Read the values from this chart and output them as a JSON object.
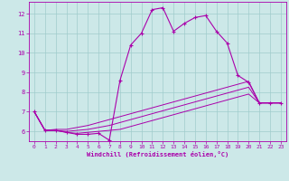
{
  "xlabel": "Windchill (Refroidissement éolien,°C)",
  "xlim": [
    -0.5,
    23.5
  ],
  "ylim": [
    5.5,
    12.6
  ],
  "xticks": [
    0,
    1,
    2,
    3,
    4,
    5,
    6,
    7,
    8,
    9,
    10,
    11,
    12,
    13,
    14,
    15,
    16,
    17,
    18,
    19,
    20,
    21,
    22,
    23
  ],
  "yticks": [
    6,
    7,
    8,
    9,
    10,
    11,
    12
  ],
  "background_color": "#cce8e8",
  "grid_color": "#a0cccc",
  "line_color": "#aa00aa",
  "curve_main_x": [
    0,
    1,
    2,
    3,
    4,
    5,
    6,
    7,
    8,
    9,
    10,
    11,
    12,
    13,
    14,
    15,
    16,
    17,
    18,
    19,
    20,
    21,
    22,
    23
  ],
  "curve_main_y": [
    7.0,
    6.05,
    6.05,
    5.95,
    5.85,
    5.85,
    5.9,
    5.55,
    8.6,
    10.4,
    11.0,
    12.2,
    12.3,
    11.1,
    11.5,
    11.8,
    11.9,
    11.1,
    10.5,
    8.85,
    8.5,
    7.45,
    7.45,
    7.45
  ],
  "curve_a_x": [
    0,
    1,
    2,
    3,
    4,
    5,
    6,
    7,
    8,
    9,
    10,
    11,
    12,
    13,
    14,
    15,
    16,
    17,
    18,
    19,
    20,
    21,
    22,
    23
  ],
  "curve_a_y": [
    7.0,
    6.05,
    6.1,
    6.1,
    6.2,
    6.3,
    6.45,
    6.6,
    6.75,
    6.9,
    7.05,
    7.2,
    7.35,
    7.5,
    7.65,
    7.8,
    7.95,
    8.1,
    8.25,
    8.4,
    8.55,
    7.45,
    7.45,
    7.45
  ],
  "curve_b_x": [
    0,
    1,
    2,
    3,
    4,
    5,
    6,
    7,
    8,
    9,
    10,
    11,
    12,
    13,
    14,
    15,
    16,
    17,
    18,
    19,
    20,
    21,
    22,
    23
  ],
  "curve_b_y": [
    7.0,
    6.05,
    6.05,
    6.0,
    6.05,
    6.1,
    6.2,
    6.3,
    6.45,
    6.6,
    6.75,
    6.9,
    7.05,
    7.2,
    7.35,
    7.5,
    7.65,
    7.8,
    7.95,
    8.1,
    8.25,
    7.45,
    7.45,
    7.45
  ],
  "curve_c_x": [
    0,
    1,
    2,
    3,
    4,
    5,
    6,
    7,
    8,
    9,
    10,
    11,
    12,
    13,
    14,
    15,
    16,
    17,
    18,
    19,
    20,
    21,
    22,
    23
  ],
  "curve_c_y": [
    7.0,
    6.05,
    6.05,
    5.95,
    5.9,
    5.95,
    6.0,
    6.05,
    6.1,
    6.25,
    6.4,
    6.55,
    6.7,
    6.85,
    7.0,
    7.15,
    7.3,
    7.45,
    7.6,
    7.75,
    7.9,
    7.45,
    7.45,
    7.45
  ]
}
